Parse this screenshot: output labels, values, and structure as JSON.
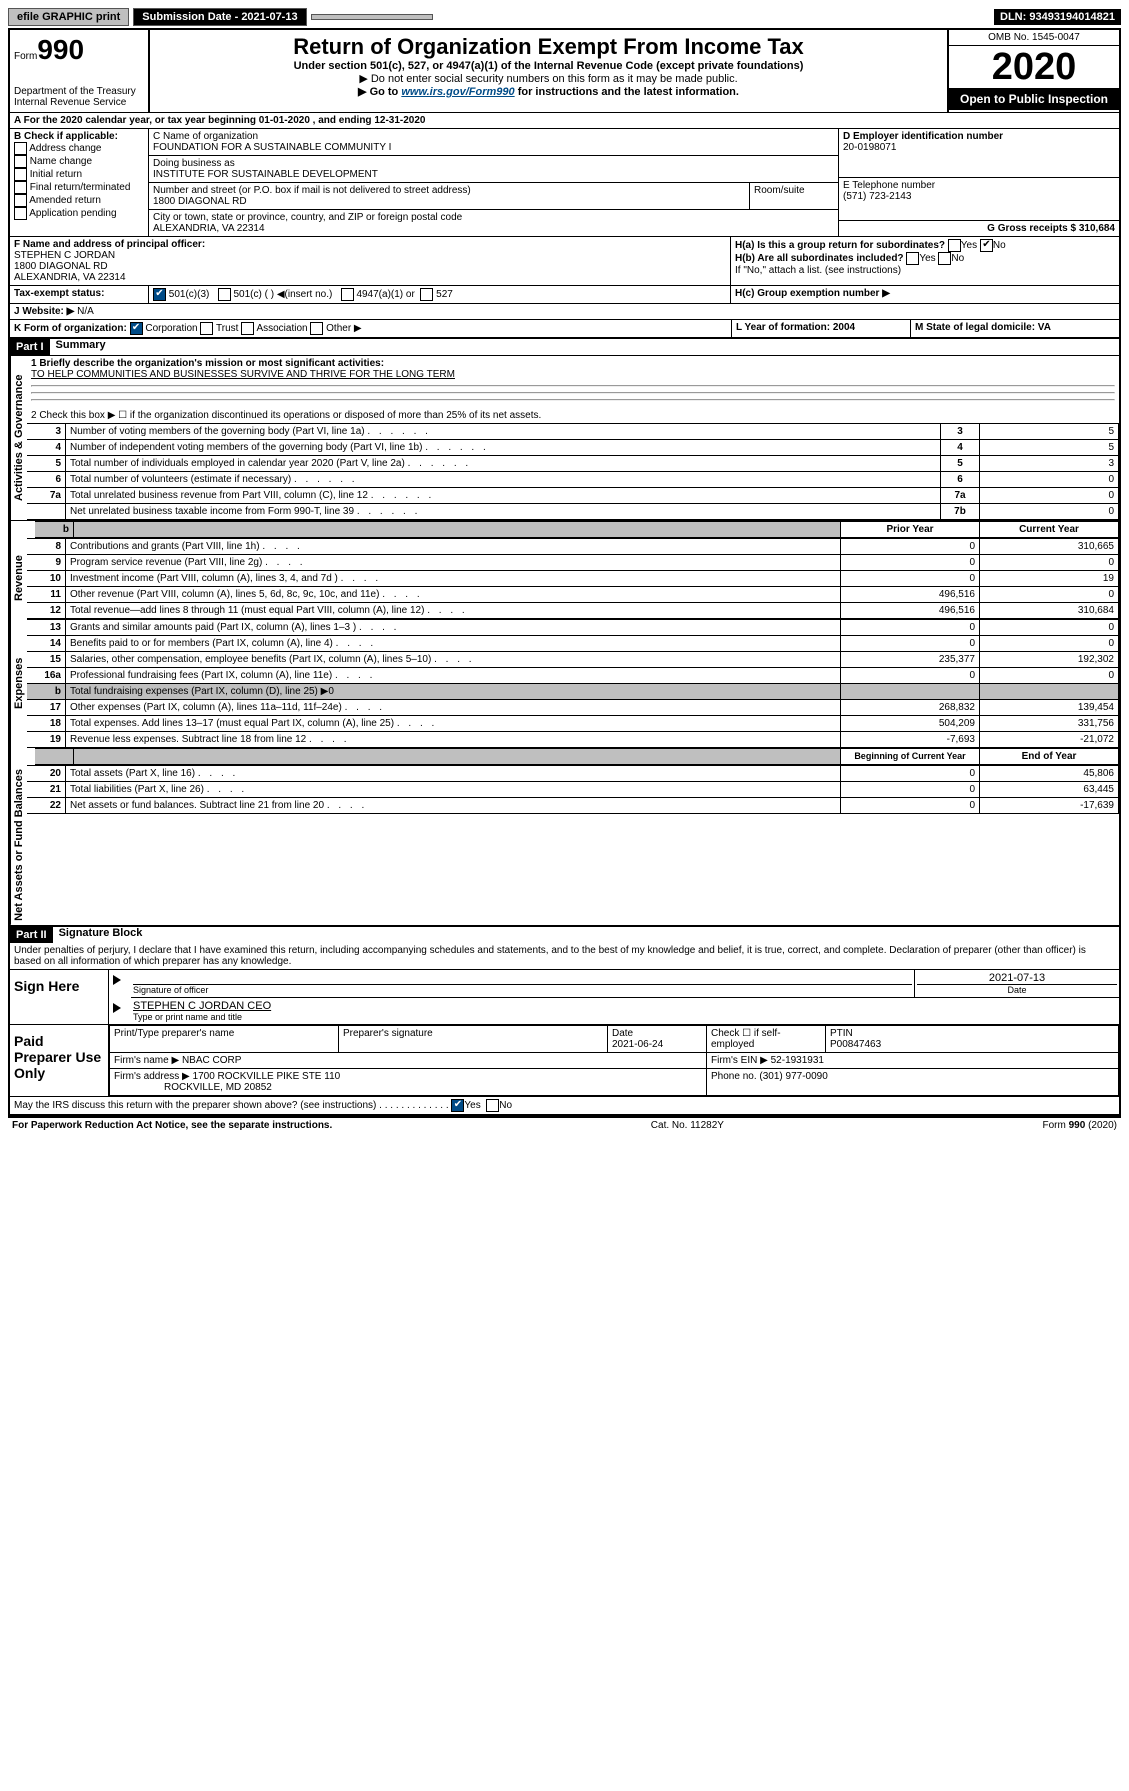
{
  "header": {
    "efile": "efile GRAPHIC print",
    "submission_label": "Submission Date - 2021-07-13",
    "dln": "DLN: 93493194014821"
  },
  "form": {
    "form_label": "Form",
    "form_num": "990",
    "dept": "Department of the Treasury Internal Revenue Service",
    "title": "Return of Organization Exempt From Income Tax",
    "subtitle": "Under section 501(c), 527, or 4947(a)(1) of the Internal Revenue Code (except private foundations)",
    "note1": "▶ Do not enter social security numbers on this form as it may be made public.",
    "note2_pre": "▶ Go to ",
    "note2_link": "www.irs.gov/Form990",
    "note2_post": " for instructions and the latest information.",
    "omb": "OMB No. 1545-0047",
    "year": "2020",
    "open": "Open to Public Inspection"
  },
  "section_a": {
    "line": "A For the 2020 calendar year, or tax year beginning 01-01-2020    , and ending 12-31-2020"
  },
  "section_b": {
    "label": "B Check if applicable:",
    "items": [
      "Address change",
      "Name change",
      "Initial return",
      "Final return/terminated",
      "Amended return",
      "Application pending"
    ]
  },
  "section_c": {
    "label": "C Name of organization",
    "name": "FOUNDATION FOR A SUSTAINABLE COMMUNITY I",
    "dba_label": "Doing business as",
    "dba": "INSTITUTE FOR SUSTAINABLE DEVELOPMENT",
    "addr_label": "Number and street (or P.O. box if mail is not delivered to street address)",
    "addr": "1800 DIAGONAL RD",
    "room_label": "Room/suite",
    "city_label": "City or town, state or province, country, and ZIP or foreign postal code",
    "city": "ALEXANDRIA, VA  22314"
  },
  "section_d": {
    "label": "D Employer identification number",
    "value": "20-0198071"
  },
  "section_e": {
    "label": "E Telephone number",
    "value": "(571) 723-2143"
  },
  "section_g": {
    "label": "G Gross receipts $ 310,684"
  },
  "section_f": {
    "label": "F  Name and address of principal officer:",
    "name": "STEPHEN C JORDAN",
    "addr1": "1800 DIAGONAL RD",
    "addr2": "ALEXANDRIA, VA  22314"
  },
  "section_h": {
    "a": "H(a)  Is this a group return for subordinates?",
    "b": "H(b)  Are all subordinates included?",
    "b_note": "If \"No,\" attach a list. (see instructions)",
    "c": "H(c)  Group exemption number ▶"
  },
  "section_i": {
    "label": "Tax-exempt status:",
    "opt1": "501(c)(3)",
    "opt2": "501(c) (  ) ◀(insert no.)",
    "opt3": "4947(a)(1) or",
    "opt4": "527"
  },
  "section_j": {
    "label": "J   Website: ▶",
    "value": "N/A"
  },
  "section_k": {
    "label": "K Form of organization:",
    "opts": [
      "Corporation",
      "Trust",
      "Association",
      "Other ▶"
    ]
  },
  "section_l": {
    "label": "L Year of formation: 2004"
  },
  "section_m": {
    "label": "M State of legal domicile: VA"
  },
  "part1": {
    "header": "Part I",
    "title": "Summary",
    "line1_label": "1   Briefly describe the organization's mission or most significant activities:",
    "line1_value": "TO HELP COMMUNITIES AND BUSINESSES SURVIVE AND THRIVE FOR THE LONG TERM",
    "line2": "2     Check this box ▶ ☐  if the organization discontinued its operations or disposed of more than 25% of its net assets.",
    "hdr_prior": "Prior Year",
    "hdr_current": "Current Year",
    "hdr_begin": "Beginning of Current Year",
    "hdr_end": "End of Year",
    "rows_top": [
      {
        "n": "3",
        "d": "Number of voting members of the governing body (Part VI, line 1a)",
        "k": "3",
        "v": "5"
      },
      {
        "n": "4",
        "d": "Number of independent voting members of the governing body (Part VI, line 1b)",
        "k": "4",
        "v": "5"
      },
      {
        "n": "5",
        "d": "Total number of individuals employed in calendar year 2020 (Part V, line 2a)",
        "k": "5",
        "v": "3"
      },
      {
        "n": "6",
        "d": "Total number of volunteers (estimate if necessary)",
        "k": "6",
        "v": "0"
      },
      {
        "n": "7a",
        "d": "Total unrelated business revenue from Part VIII, column (C), line 12",
        "k": "7a",
        "v": "0"
      },
      {
        "n": "",
        "d": "Net unrelated business taxable income from Form 990-T, line 39",
        "k": "7b",
        "v": "0"
      }
    ],
    "rows_rev": [
      {
        "n": "8",
        "d": "Contributions and grants (Part VIII, line 1h)",
        "p": "0",
        "c": "310,665"
      },
      {
        "n": "9",
        "d": "Program service revenue (Part VIII, line 2g)",
        "p": "0",
        "c": "0"
      },
      {
        "n": "10",
        "d": "Investment income (Part VIII, column (A), lines 3, 4, and 7d )",
        "p": "0",
        "c": "19"
      },
      {
        "n": "11",
        "d": "Other revenue (Part VIII, column (A), lines 5, 6d, 8c, 9c, 10c, and 11e)",
        "p": "496,516",
        "c": "0"
      },
      {
        "n": "12",
        "d": "Total revenue—add lines 8 through 11 (must equal Part VIII, column (A), line 12)",
        "p": "496,516",
        "c": "310,684"
      }
    ],
    "rows_exp": [
      {
        "n": "13",
        "d": "Grants and similar amounts paid (Part IX, column (A), lines 1–3 )",
        "p": "0",
        "c": "0"
      },
      {
        "n": "14",
        "d": "Benefits paid to or for members (Part IX, column (A), line 4)",
        "p": "0",
        "c": "0"
      },
      {
        "n": "15",
        "d": "Salaries, other compensation, employee benefits (Part IX, column (A), lines 5–10)",
        "p": "235,377",
        "c": "192,302"
      },
      {
        "n": "16a",
        "d": "Professional fundraising fees (Part IX, column (A), line 11e)",
        "p": "0",
        "c": "0"
      },
      {
        "n": "b",
        "d": "Total fundraising expenses (Part IX, column (D), line 25) ▶0",
        "p": "",
        "c": "",
        "shade": true
      },
      {
        "n": "17",
        "d": "Other expenses (Part IX, column (A), lines 11a–11d, 11f–24e)",
        "p": "268,832",
        "c": "139,454"
      },
      {
        "n": "18",
        "d": "Total expenses. Add lines 13–17 (must equal Part IX, column (A), line 25)",
        "p": "504,209",
        "c": "331,756"
      },
      {
        "n": "19",
        "d": "Revenue less expenses. Subtract line 18 from line 12",
        "p": "-7,693",
        "c": "-21,072"
      }
    ],
    "rows_net": [
      {
        "n": "20",
        "d": "Total assets (Part X, line 16)",
        "p": "0",
        "c": "45,806"
      },
      {
        "n": "21",
        "d": "Total liabilities (Part X, line 26)",
        "p": "0",
        "c": "63,445"
      },
      {
        "n": "22",
        "d": "Net assets or fund balances. Subtract line 21 from line 20",
        "p": "0",
        "c": "-17,639"
      }
    ],
    "labels": {
      "gov": "Activities & Governance",
      "rev": "Revenue",
      "exp": "Expenses",
      "net": "Net Assets or Fund Balances"
    }
  },
  "part2": {
    "header": "Part II",
    "title": "Signature Block",
    "perjury": "Under penalties of perjury, I declare that I have examined this return, including accompanying schedules and statements, and to the best of my knowledge and belief, it is true, correct, and complete. Declaration of preparer (other than officer) is based on all information of which preparer has any knowledge.",
    "sign_here": "Sign Here",
    "sig_officer": "Signature of officer",
    "sig_date": "2021-07-13",
    "date_lbl": "Date",
    "officer_name": "STEPHEN C JORDAN CEO",
    "type_name": "Type or print name and title",
    "paid": "Paid Preparer Use Only",
    "prep_name_lbl": "Print/Type preparer's name",
    "prep_sig_lbl": "Preparer's signature",
    "prep_date": "2021-06-24",
    "check_self": "Check ☐ if self-employed",
    "ptin_lbl": "PTIN",
    "ptin": "P00847463",
    "firm_name_lbl": "Firm's name    ▶",
    "firm_name": "NBAC CORP",
    "firm_ein_lbl": "Firm's EIN ▶",
    "firm_ein": "52-1931931",
    "firm_addr_lbl": "Firm's address ▶",
    "firm_addr": "1700 ROCKVILLE PIKE STE 110",
    "firm_city": "ROCKVILLE, MD  20852",
    "phone_lbl": "Phone no.",
    "phone": "(301) 977-0090",
    "discuss": "May the IRS discuss this return with the preparer shown above? (see instructions)"
  },
  "footer": {
    "left": "For Paperwork Reduction Act Notice, see the separate instructions.",
    "mid": "Cat. No. 11282Y",
    "right": "Form 990 (2020)"
  }
}
